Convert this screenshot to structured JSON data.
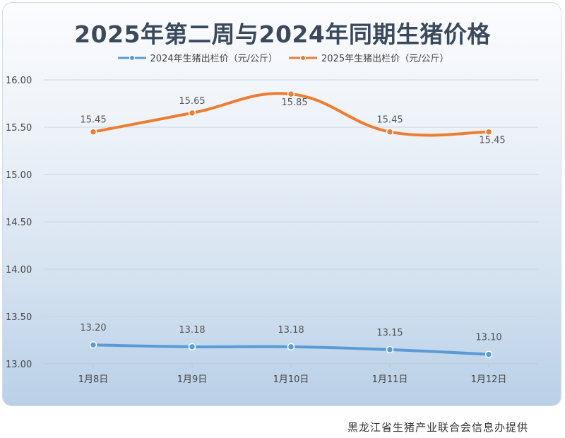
{
  "chart_data": {
    "type": "line",
    "title": "2025年第二周与2024年同期生猪价格",
    "categories": [
      "1月8日",
      "1月9日",
      "1月10日",
      "1月11日",
      "1月12日"
    ],
    "series": [
      {
        "name": "2024年生猪出栏价（元/公斤）",
        "color": "#5b9bd5",
        "values": [
          13.2,
          13.18,
          13.18,
          13.15,
          13.1
        ],
        "labels": [
          "13.20",
          "13.18",
          "13.18",
          "13.15",
          "13.10"
        ]
      },
      {
        "name": "2025年生猪出栏价（元/公斤）",
        "color": "#ed7d31",
        "values": [
          15.45,
          15.65,
          15.85,
          15.45,
          15.45
        ],
        "labels": [
          "15.45",
          "15.65",
          "15.85",
          "15.45",
          "15.45"
        ]
      }
    ],
    "ylim": [
      13.0,
      16.0
    ],
    "yticks": [
      "13.00",
      "13.50",
      "14.00",
      "14.50",
      "15.00",
      "15.50",
      "16.00"
    ],
    "xlabel": "",
    "ylabel": "",
    "grid": true,
    "legend_position": "top"
  },
  "footer": "黑龙江省生猪产业联合会信息办提供"
}
